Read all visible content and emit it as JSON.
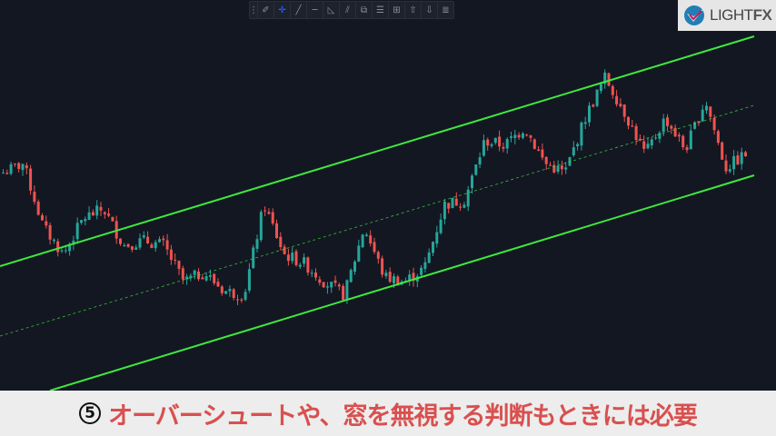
{
  "toolbar": {
    "tools": [
      {
        "icon": "grip-icon",
        "glyph": "⋮"
      },
      {
        "icon": "brush-icon",
        "glyph": "✐"
      },
      {
        "icon": "crosshair-icon",
        "glyph": "✛",
        "active": true
      },
      {
        "icon": "trend-line-icon",
        "glyph": "╱"
      },
      {
        "icon": "horizontal-line-icon",
        "glyph": "─"
      },
      {
        "icon": "triangle-icon",
        "glyph": "◺"
      },
      {
        "icon": "parallel-channel-icon",
        "glyph": "⫽"
      },
      {
        "icon": "pattern-icon",
        "glyph": "⧉"
      },
      {
        "icon": "fib-icon",
        "glyph": "☰"
      },
      {
        "icon": "gann-icon",
        "glyph": "⊞"
      },
      {
        "icon": "arrow-up-icon",
        "glyph": "⇧"
      },
      {
        "icon": "arrow-down-icon",
        "glyph": "⇩"
      },
      {
        "icon": "text-lines-icon",
        "glyph": "≣"
      }
    ]
  },
  "logo": {
    "text_a": "LIGHT",
    "text_b": "FX"
  },
  "caption": {
    "number": "5",
    "text": "オーバーシュートや、窓を無視する判断もときには必要"
  },
  "colors": {
    "background": "#131722",
    "up": "#26a69a",
    "down": "#ef5350",
    "channel": "#3ee83e",
    "caption": "#d9504f"
  },
  "chart_data": {
    "type": "candlestick",
    "grid": false,
    "price_path": [
      240,
      250,
      180,
      150,
      190,
      200,
      160,
      165,
      160,
      120,
      130,
      110,
      105,
      205,
      150,
      140,
      120,
      105,
      180,
      125,
      120,
      135,
      205,
      210,
      275,
      270,
      290,
      250,
      240,
      300,
      345,
      305,
      260,
      300,
      265,
      320,
      245,
      260
    ],
    "channel": {
      "style": "parallel",
      "midline": "dashed"
    }
  }
}
